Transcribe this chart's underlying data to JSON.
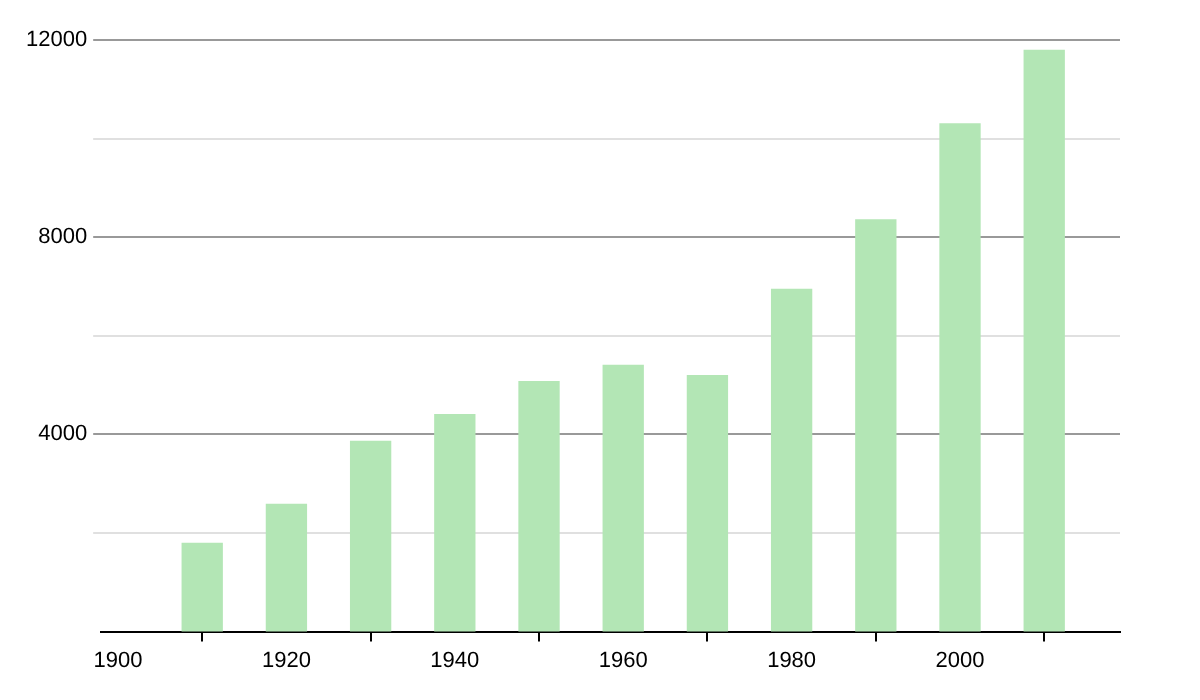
{
  "chart_data": {
    "type": "bar",
    "x": [
      1910,
      1920,
      1930,
      1940,
      1950,
      1960,
      1970,
      1980,
      1990,
      2000,
      2010
    ],
    "values": [
      1790,
      2580,
      3860,
      4400,
      5070,
      5400,
      5190,
      6940,
      8350,
      10300,
      11790
    ],
    "color": "#b3e6b5",
    "xlim": [
      1898,
      2019
    ],
    "xticks": [
      1900,
      1920,
      1940,
      1960,
      1980,
      2000
    ],
    "ylim": [
      0,
      12000
    ],
    "yticks": [
      {
        "value": 2000,
        "label": null
      },
      4000,
      {
        "value": 6000,
        "label": null
      },
      8000,
      {
        "value": 10000,
        "label": null
      },
      12000
    ],
    "grid": "y"
  }
}
